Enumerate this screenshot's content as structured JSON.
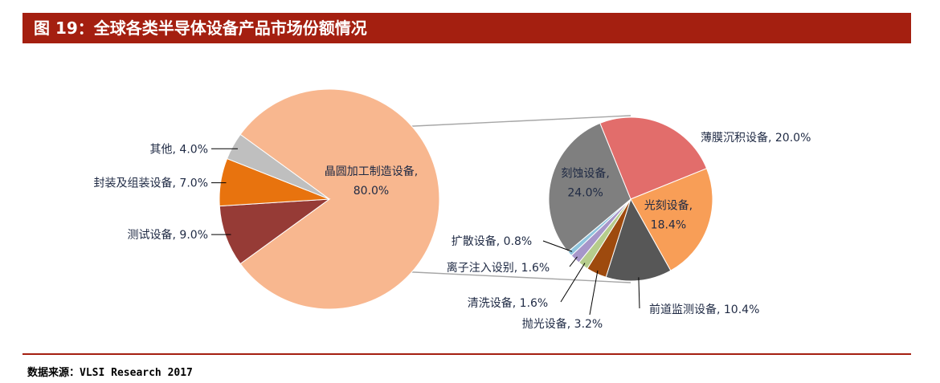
{
  "header": {
    "title": "图 19：全球各类半导体设备产品市场份额情况"
  },
  "footer": {
    "source": "数据来源：VLSI Research 2017"
  },
  "chart_data": {
    "type": "pie",
    "main_pie": {
      "slices": [
        {
          "name": "晶圆加工制造设备",
          "value": 80.0,
          "label": "80.0%",
          "color": "#f8b78f"
        },
        {
          "name": "测试设备",
          "value": 9.0,
          "label": "9.0%",
          "color": "#963b36"
        },
        {
          "name": "封装及组装设备",
          "value": 7.0,
          "label": "7.0%",
          "color": "#e8730e"
        },
        {
          "name": "其他",
          "value": 4.0,
          "label": "4.0%",
          "color": "#bfbfbf"
        }
      ],
      "exploded_slice": "晶圆加工制造设备"
    },
    "detail_pie": {
      "slices": [
        {
          "name": "薄膜沉积设备",
          "value": 20.0,
          "label": "20.0%",
          "color": "#e26d6b"
        },
        {
          "name": "光刻设备",
          "value": 18.4,
          "label": "18.4%",
          "color": "#f89e57"
        },
        {
          "name": "前道监测设备",
          "value": 10.4,
          "label": "10.4%",
          "color": "#575757"
        },
        {
          "name": "抛光设备",
          "value": 3.2,
          "label": "3.2%",
          "color": "#9e4a0e"
        },
        {
          "name": "清洗设备",
          "value": 1.6,
          "label": "1.6%",
          "color": "#b6cc8c"
        },
        {
          "name": "离子注入设别",
          "value": 1.6,
          "label": "1.6%",
          "color": "#a696c9"
        },
        {
          "name": "扩散设备",
          "value": 0.8,
          "label": "0.8%",
          "color": "#8fc5dd"
        },
        {
          "name": "刻蚀设备",
          "value": 24.0,
          "label": "24.0%",
          "color": "#7f7f7f"
        }
      ]
    },
    "label_separator": ", "
  }
}
